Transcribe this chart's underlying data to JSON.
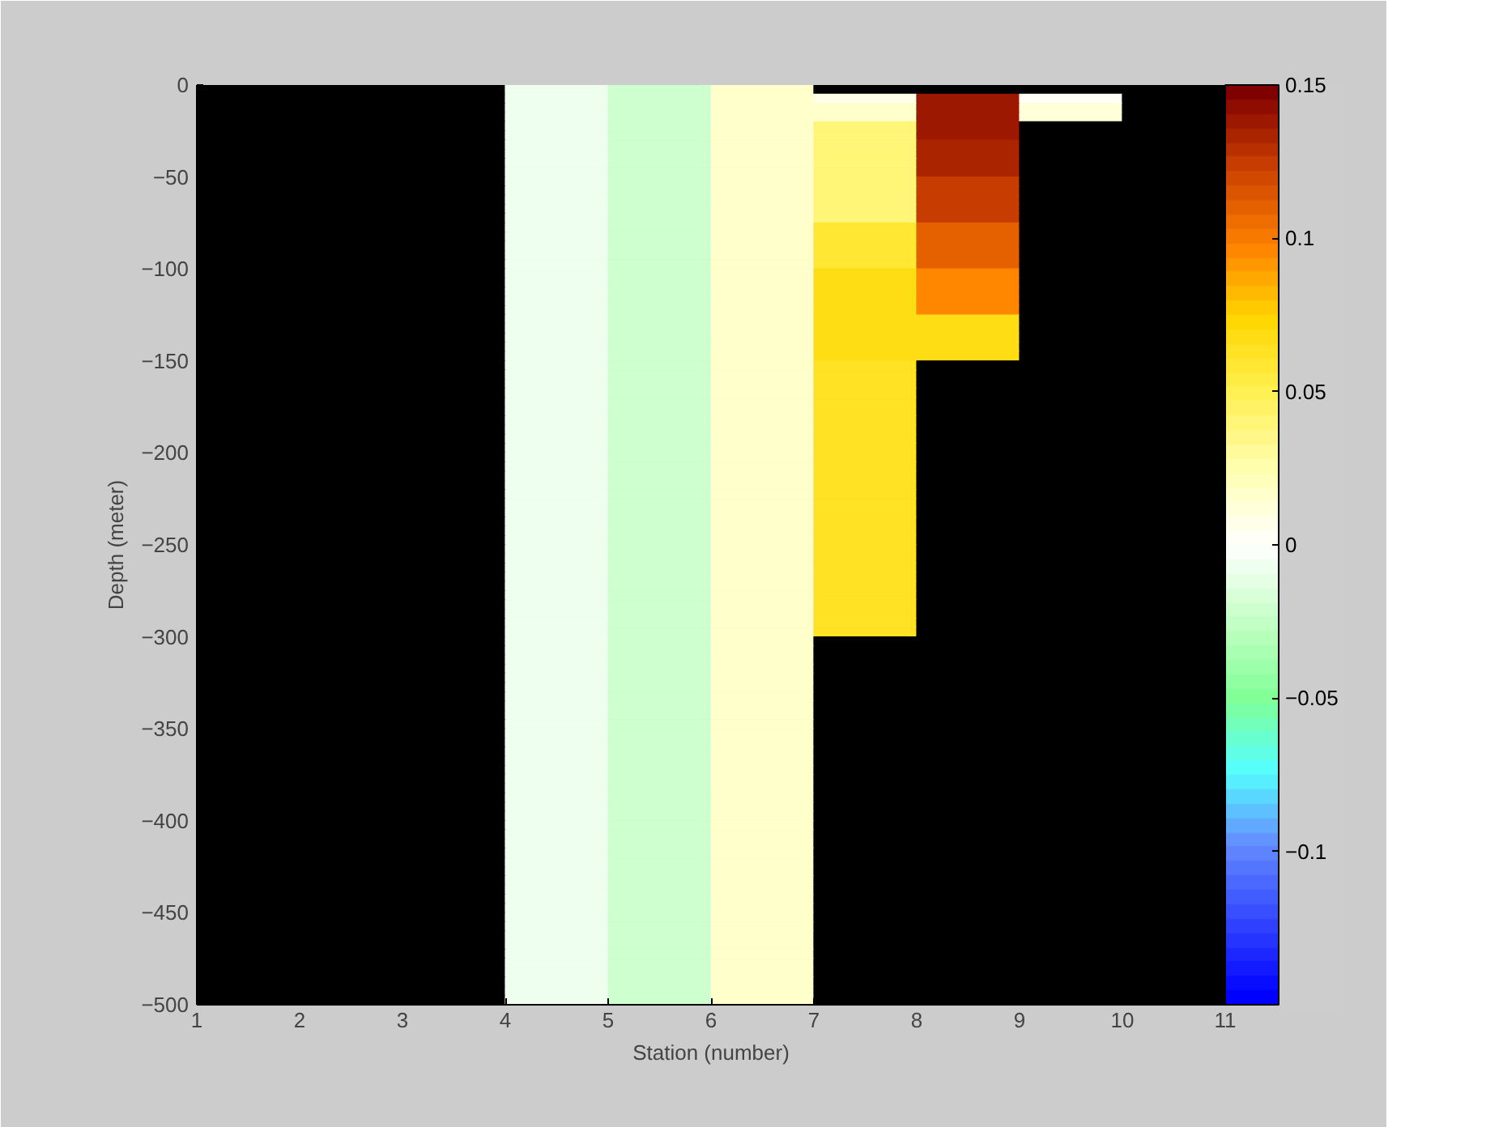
{
  "chart_data": {
    "type": "heatmap",
    "xlabel": "Station (number)",
    "ylabel": "Depth (meter)",
    "xlim": [
      1,
      11
    ],
    "ylim": [
      -500,
      0
    ],
    "xticks": [
      1,
      2,
      3,
      4,
      5,
      6,
      7,
      8,
      9,
      10,
      11
    ],
    "yticks": [
      0,
      -50,
      -100,
      -150,
      -200,
      -250,
      -300,
      -350,
      -400,
      -450,
      -500
    ],
    "clim": [
      -0.15,
      0.15
    ],
    "cticks": [
      -0.1,
      -0.05,
      0,
      0.05,
      0.1,
      0.15
    ],
    "cells": [
      [
        null,
        null,
        null,
        -0.005,
        -0.02,
        0.015,
        null,
        null,
        null,
        null
      ],
      [
        null,
        null,
        null,
        -0.005,
        -0.02,
        0.015,
        0.005,
        0.14,
        0.002,
        null
      ],
      [
        null,
        null,
        null,
        -0.005,
        -0.02,
        0.015,
        0.015,
        0.14,
        0.01,
        null
      ],
      [
        null,
        null,
        null,
        -0.005,
        -0.02,
        0.015,
        0.015,
        0.14,
        0.01,
        null
      ],
      [
        null,
        null,
        null,
        -0.005,
        -0.02,
        0.015,
        0.038,
        0.14,
        null,
        null
      ],
      [
        null,
        null,
        null,
        -0.005,
        -0.02,
        0.015,
        0.038,
        0.14,
        null,
        null
      ],
      [
        null,
        null,
        null,
        -0.005,
        -0.02,
        0.015,
        0.042,
        0.135,
        null,
        null
      ],
      [
        null,
        null,
        null,
        -0.005,
        -0.02,
        0.015,
        0.042,
        0.135,
        null,
        null
      ],
      [
        null,
        null,
        null,
        -0.005,
        -0.02,
        0.015,
        0.042,
        0.135,
        null,
        null
      ],
      [
        null,
        null,
        null,
        -0.005,
        -0.02,
        0.015,
        0.042,
        0.135,
        null,
        null
      ],
      [
        null,
        null,
        null,
        -0.005,
        -0.02,
        0.015,
        0.042,
        0.125,
        null,
        null
      ],
      [
        null,
        null,
        null,
        -0.005,
        -0.02,
        0.015,
        0.042,
        0.125,
        null,
        null
      ],
      [
        null,
        null,
        null,
        -0.005,
        -0.02,
        0.015,
        0.042,
        0.125,
        null,
        null
      ],
      [
        null,
        null,
        null,
        -0.005,
        -0.02,
        0.015,
        0.042,
        0.125,
        null,
        null
      ],
      [
        null,
        null,
        null,
        -0.005,
        -0.02,
        0.015,
        0.042,
        0.125,
        null,
        null
      ],
      [
        null,
        null,
        null,
        -0.005,
        -0.02,
        0.015,
        0.06,
        0.11,
        null,
        null
      ],
      [
        null,
        null,
        null,
        -0.005,
        -0.02,
        0.015,
        0.06,
        0.11,
        null,
        null
      ],
      [
        null,
        null,
        null,
        -0.005,
        -0.02,
        0.015,
        0.06,
        0.11,
        null,
        null
      ],
      [
        null,
        null,
        null,
        -0.005,
        -0.02,
        0.015,
        0.06,
        0.11,
        null,
        null
      ],
      [
        null,
        null,
        null,
        -0.005,
        -0.02,
        0.015,
        0.06,
        0.11,
        null,
        null
      ],
      [
        null,
        null,
        null,
        -0.005,
        -0.02,
        0.015,
        0.07,
        0.095,
        null,
        null
      ],
      [
        null,
        null,
        null,
        -0.005,
        -0.02,
        0.015,
        0.07,
        0.095,
        null,
        null
      ],
      [
        null,
        null,
        null,
        -0.005,
        -0.02,
        0.015,
        0.07,
        0.095,
        null,
        null
      ],
      [
        null,
        null,
        null,
        -0.005,
        -0.02,
        0.015,
        0.07,
        0.095,
        null,
        null
      ],
      [
        null,
        null,
        null,
        -0.005,
        -0.02,
        0.015,
        0.07,
        0.095,
        null,
        null
      ],
      [
        null,
        null,
        null,
        -0.005,
        -0.02,
        0.015,
        0.07,
        0.07,
        null,
        null
      ],
      [
        null,
        null,
        null,
        -0.005,
        -0.02,
        0.015,
        0.07,
        0.07,
        null,
        null
      ],
      [
        null,
        null,
        null,
        -0.005,
        -0.02,
        0.015,
        0.07,
        0.07,
        null,
        null
      ],
      [
        null,
        null,
        null,
        -0.005,
        -0.02,
        0.015,
        0.07,
        0.07,
        null,
        null
      ],
      [
        null,
        null,
        null,
        -0.005,
        -0.02,
        0.015,
        0.07,
        0.07,
        null,
        null
      ],
      [
        null,
        null,
        null,
        -0.005,
        -0.02,
        0.015,
        0.065,
        null,
        null,
        null
      ],
      [
        null,
        null,
        null,
        -0.005,
        -0.02,
        0.015,
        0.065,
        null,
        null,
        null
      ],
      [
        null,
        null,
        null,
        -0.005,
        -0.02,
        0.015,
        0.065,
        null,
        null,
        null
      ],
      [
        null,
        null,
        null,
        -0.005,
        -0.02,
        0.015,
        0.065,
        null,
        null,
        null
      ],
      [
        null,
        null,
        null,
        -0.005,
        -0.02,
        0.015,
        0.065,
        null,
        null,
        null
      ],
      [
        null,
        null,
        null,
        -0.005,
        -0.02,
        0.015,
        0.065,
        null,
        null,
        null
      ],
      [
        null,
        null,
        null,
        -0.005,
        -0.02,
        0.015,
        0.065,
        null,
        null,
        null
      ],
      [
        null,
        null,
        null,
        -0.005,
        -0.02,
        0.015,
        0.065,
        null,
        null,
        null
      ],
      [
        null,
        null,
        null,
        -0.005,
        -0.02,
        0.015,
        0.065,
        null,
        null,
        null
      ],
      [
        null,
        null,
        null,
        -0.005,
        -0.02,
        0.015,
        0.065,
        null,
        null,
        null
      ],
      [
        null,
        null,
        null,
        -0.005,
        -0.02,
        0.015,
        0.065,
        null,
        null,
        null
      ],
      [
        null,
        null,
        null,
        -0.005,
        -0.02,
        0.015,
        0.065,
        null,
        null,
        null
      ],
      [
        null,
        null,
        null,
        -0.005,
        -0.02,
        0.015,
        0.065,
        null,
        null,
        null
      ],
      [
        null,
        null,
        null,
        -0.005,
        -0.02,
        0.015,
        0.065,
        null,
        null,
        null
      ],
      [
        null,
        null,
        null,
        -0.005,
        -0.02,
        0.015,
        0.065,
        null,
        null,
        null
      ],
      [
        null,
        null,
        null,
        -0.005,
        -0.02,
        0.015,
        0.065,
        null,
        null,
        null
      ],
      [
        null,
        null,
        null,
        -0.005,
        -0.02,
        0.015,
        0.065,
        null,
        null,
        null
      ],
      [
        null,
        null,
        null,
        -0.005,
        -0.02,
        0.015,
        0.065,
        null,
        null,
        null
      ],
      [
        null,
        null,
        null,
        -0.005,
        -0.02,
        0.015,
        0.065,
        null,
        null,
        null
      ],
      [
        null,
        null,
        null,
        -0.005,
        -0.02,
        0.015,
        0.065,
        null,
        null,
        null
      ],
      [
        null,
        null,
        null,
        -0.005,
        -0.02,
        0.015,
        0.065,
        null,
        null,
        null
      ],
      [
        null,
        null,
        null,
        -0.005,
        -0.02,
        0.015,
        0.065,
        null,
        null,
        null
      ],
      [
        null,
        null,
        null,
        -0.005,
        -0.02,
        0.015,
        0.065,
        null,
        null,
        null
      ],
      [
        null,
        null,
        null,
        -0.005,
        -0.02,
        0.015,
        0.065,
        null,
        null,
        null
      ],
      [
        null,
        null,
        null,
        -0.005,
        -0.02,
        0.015,
        0.065,
        null,
        null,
        null
      ],
      [
        null,
        null,
        null,
        -0.005,
        -0.02,
        0.015,
        0.065,
        null,
        null,
        null
      ],
      [
        null,
        null,
        null,
        -0.005,
        -0.02,
        0.015,
        0.065,
        null,
        null,
        null
      ],
      [
        null,
        null,
        null,
        -0.005,
        -0.02,
        0.015,
        0.065,
        null,
        null,
        null
      ],
      [
        null,
        null,
        null,
        -0.005,
        -0.02,
        0.015,
        0.065,
        null,
        null,
        null
      ],
      [
        null,
        null,
        null,
        -0.005,
        -0.02,
        0.015,
        0.065,
        null,
        null,
        null
      ],
      [
        null,
        null,
        null,
        -0.005,
        -0.02,
        0.015,
        null,
        null,
        null,
        null
      ],
      [
        null,
        null,
        null,
        -0.005,
        -0.02,
        0.015,
        null,
        null,
        null,
        null
      ],
      [
        null,
        null,
        null,
        -0.005,
        -0.02,
        0.015,
        null,
        null,
        null,
        null
      ],
      [
        null,
        null,
        null,
        -0.005,
        -0.02,
        0.015,
        null,
        null,
        null,
        null
      ],
      [
        null,
        null,
        null,
        -0.005,
        -0.02,
        0.015,
        null,
        null,
        null,
        null
      ],
      [
        null,
        null,
        null,
        -0.005,
        -0.02,
        0.015,
        null,
        null,
        null,
        null
      ],
      [
        null,
        null,
        null,
        -0.005,
        -0.02,
        0.015,
        null,
        null,
        null,
        null
      ],
      [
        null,
        null,
        null,
        -0.005,
        -0.02,
        0.015,
        null,
        null,
        null,
        null
      ],
      [
        null,
        null,
        null,
        -0.005,
        -0.02,
        0.015,
        null,
        null,
        null,
        null
      ],
      [
        null,
        null,
        null,
        -0.005,
        -0.02,
        0.015,
        null,
        null,
        null,
        null
      ],
      [
        null,
        null,
        null,
        -0.005,
        -0.02,
        0.015,
        null,
        null,
        null,
        null
      ],
      [
        null,
        null,
        null,
        -0.005,
        -0.02,
        0.015,
        null,
        null,
        null,
        null
      ],
      [
        null,
        null,
        null,
        -0.005,
        -0.02,
        0.015,
        null,
        null,
        null,
        null
      ],
      [
        null,
        null,
        null,
        -0.005,
        -0.02,
        0.015,
        null,
        null,
        null,
        null
      ],
      [
        null,
        null,
        null,
        -0.005,
        -0.02,
        0.015,
        null,
        null,
        null,
        null
      ],
      [
        null,
        null,
        null,
        -0.005,
        -0.02,
        0.015,
        null,
        null,
        null,
        null
      ],
      [
        null,
        null,
        null,
        -0.005,
        -0.02,
        0.015,
        null,
        null,
        null,
        null
      ],
      [
        null,
        null,
        null,
        -0.005,
        -0.02,
        0.015,
        null,
        null,
        null,
        null
      ],
      [
        null,
        null,
        null,
        -0.005,
        -0.02,
        0.015,
        null,
        null,
        null,
        null
      ],
      [
        null,
        null,
        null,
        -0.005,
        -0.02,
        0.015,
        null,
        null,
        null,
        null
      ],
      [
        null,
        null,
        null,
        -0.005,
        -0.02,
        0.015,
        null,
        null,
        null,
        null
      ],
      [
        null,
        null,
        null,
        -0.005,
        -0.02,
        0.015,
        null,
        null,
        null,
        null
      ],
      [
        null,
        null,
        null,
        -0.005,
        -0.02,
        0.015,
        null,
        null,
        null,
        null
      ],
      [
        null,
        null,
        null,
        -0.005,
        -0.02,
        0.015,
        null,
        null,
        null,
        null
      ],
      [
        null,
        null,
        null,
        -0.005,
        -0.02,
        0.015,
        null,
        null,
        null,
        null
      ],
      [
        null,
        null,
        null,
        -0.005,
        -0.02,
        0.015,
        null,
        null,
        null,
        null
      ],
      [
        null,
        null,
        null,
        -0.005,
        -0.02,
        0.015,
        null,
        null,
        null,
        null
      ],
      [
        null,
        null,
        null,
        -0.005,
        -0.02,
        0.015,
        null,
        null,
        null,
        null
      ],
      [
        null,
        null,
        null,
        -0.005,
        -0.02,
        0.015,
        null,
        null,
        null,
        null
      ],
      [
        null,
        null,
        null,
        -0.005,
        -0.02,
        0.015,
        null,
        null,
        null,
        null
      ],
      [
        null,
        null,
        null,
        -0.005,
        -0.02,
        0.015,
        null,
        null,
        null,
        null
      ],
      [
        null,
        null,
        null,
        -0.005,
        -0.02,
        0.015,
        null,
        null,
        null,
        null
      ],
      [
        null,
        null,
        null,
        -0.005,
        -0.02,
        0.015,
        null,
        null,
        null,
        null
      ],
      [
        null,
        null,
        null,
        -0.005,
        -0.02,
        0.015,
        null,
        null,
        null,
        null
      ],
      [
        null,
        null,
        null,
        -0.005,
        -0.02,
        0.015,
        null,
        null,
        null,
        null
      ],
      [
        null,
        null,
        null,
        -0.005,
        -0.02,
        0.015,
        null,
        null,
        null,
        null
      ],
      [
        null,
        null,
        null,
        -0.005,
        -0.02,
        0.015,
        null,
        null,
        null,
        null
      ],
      [
        null,
        null,
        null,
        -0.005,
        -0.02,
        0.015,
        null,
        null,
        null,
        null
      ],
      [
        null,
        null,
        null,
        -0.005,
        -0.02,
        0.015,
        null,
        null,
        null,
        null
      ],
      [
        null,
        null,
        null,
        -0.005,
        -0.02,
        0.015,
        null,
        null,
        null,
        null
      ]
    ]
  }
}
